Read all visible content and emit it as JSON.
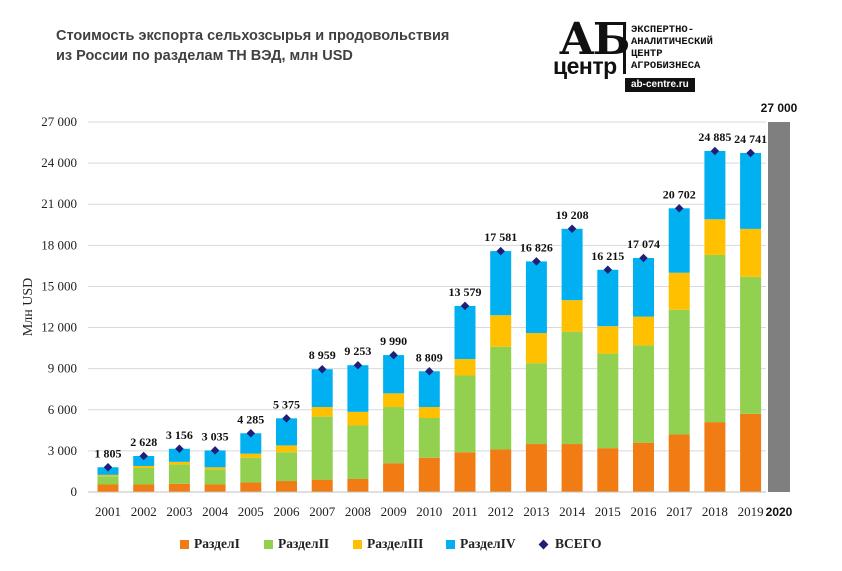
{
  "header": {
    "title_line1": "Стоимость экспорта сельхозсырья и продовольствия",
    "title_line2": "из России по разделам ТН ВЭД, млн USD"
  },
  "logo": {
    "ab": "АБ",
    "centr": "центр",
    "line1": "ЭКСПЕРТНО-",
    "line2": "АНАЛИТИЧЕСКИЙ",
    "line3": "ЦЕНТР",
    "line4": "АГРОБИЗНЕСА",
    "url": "ab-centre.ru"
  },
  "chart_data": {
    "type": "bar",
    "stacked": true,
    "categories": [
      "2001",
      "2002",
      "2003",
      "2004",
      "2005",
      "2006",
      "2007",
      "2008",
      "2009",
      "2010",
      "2011",
      "2012",
      "2013",
      "2014",
      "2015",
      "2016",
      "2017",
      "2018",
      "2019"
    ],
    "series": [
      {
        "name": "РазделI",
        "color": "#f07c13",
        "values": [
          550,
          550,
          600,
          550,
          700,
          800,
          900,
          950,
          2100,
          2500,
          2900,
          3100,
          3500,
          3500,
          3200,
          3600,
          4200,
          5100,
          5700
        ]
      },
      {
        "name": "РазделII",
        "color": "#92d050",
        "values": [
          600,
          1200,
          1400,
          1100,
          1800,
          2100,
          4600,
          3900,
          4100,
          2900,
          5600,
          7500,
          5900,
          8200,
          6900,
          7100,
          9100,
          12200,
          10000
        ]
      },
      {
        "name": "РазделIII",
        "color": "#ffc000",
        "values": [
          100,
          150,
          200,
          150,
          300,
          500,
          700,
          1000,
          1000,
          800,
          1200,
          2300,
          2200,
          2300,
          2000,
          2100,
          2700,
          2600,
          3500
        ]
      },
      {
        "name": "РазделIV",
        "color": "#00b0f0",
        "values": [
          555,
          728,
          956,
          1235,
          1485,
          1975,
          2759,
          3403,
          2790,
          2609,
          3879,
          4681,
          5226,
          5208,
          4115,
          4274,
          4702,
          4985,
          5541
        ]
      }
    ],
    "totals_series": {
      "name": "ВСЕГО",
      "color": "#1f1f7a"
    },
    "totals": [
      1805,
      2628,
      3156,
      3035,
      4285,
      5375,
      8959,
      9253,
      9990,
      8809,
      13579,
      17581,
      16826,
      19208,
      16215,
      17074,
      20702,
      24885,
      24741
    ],
    "total_labels": [
      "1 805",
      "2 628",
      "3 156",
      "3 035",
      "4 285",
      "5 375",
      "8 959",
      "9 253",
      "9 990",
      "8 809",
      "13 579",
      "17 581",
      "16 826",
      "19 208",
      "16 215",
      "17 074",
      "20 702",
      "24 885",
      "24 741"
    ],
    "forecast": {
      "category": "2020",
      "value": 27000,
      "label": "27 000",
      "color": "#7f7f7f"
    },
    "ylabel": "Млн USD",
    "ylim": [
      0,
      27000
    ],
    "yticks": [
      0,
      3000,
      6000,
      9000,
      12000,
      15000,
      18000,
      21000,
      24000,
      27000
    ],
    "ytick_labels": [
      "0",
      "3 000",
      "6 000",
      "9 000",
      "12 000",
      "15 000",
      "18 000",
      "21 000",
      "24 000",
      "27 000"
    ],
    "grid": true,
    "legend_position": "bottom"
  }
}
